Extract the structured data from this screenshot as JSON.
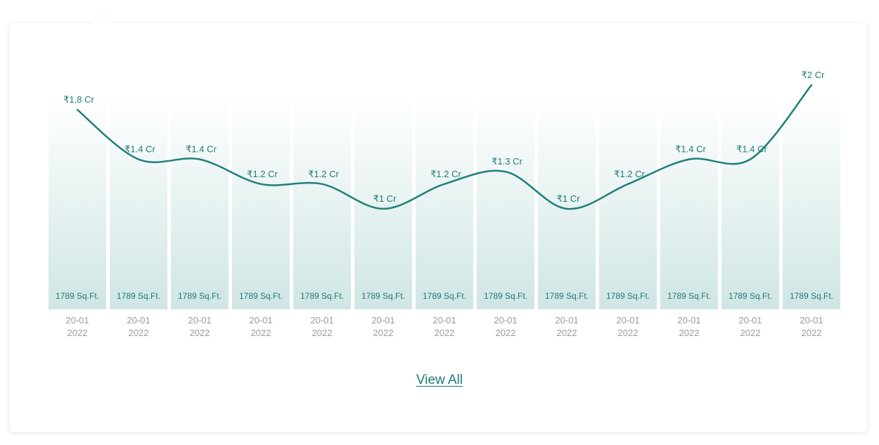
{
  "chart_data": {
    "type": "line",
    "categories": [
      "20-01 2022",
      "20-01 2022",
      "20-01 2022",
      "20-01 2022",
      "20-01 2022",
      "20-01 2022",
      "20-01 2022",
      "20-01 2022",
      "20-01 2022",
      "20-01 2022",
      "20-01 2022",
      "20-01 2022",
      "20-01 2022"
    ],
    "x_labels": [
      {
        "line1": "20-01",
        "line2": "2022"
      },
      {
        "line1": "20-01",
        "line2": "2022"
      },
      {
        "line1": "20-01",
        "line2": "2022"
      },
      {
        "line1": "20-01",
        "line2": "2022"
      },
      {
        "line1": "20-01",
        "line2": "2022"
      },
      {
        "line1": "20-01",
        "line2": "2022"
      },
      {
        "line1": "20-01",
        "line2": "2022"
      },
      {
        "line1": "20-01",
        "line2": "2022"
      },
      {
        "line1": "20-01",
        "line2": "2022"
      },
      {
        "line1": "20-01",
        "line2": "2022"
      },
      {
        "line1": "20-01",
        "line2": "2022"
      },
      {
        "line1": "20-01",
        "line2": "2022"
      },
      {
        "line1": "20-01",
        "line2": "2022"
      }
    ],
    "values": [
      1.8,
      1.4,
      1.4,
      1.2,
      1.2,
      1,
      1.2,
      1.3,
      1,
      1.2,
      1.4,
      1.4,
      2
    ],
    "value_labels": [
      "₹1.8 Cr",
      "₹1.4 Cr",
      "₹1.4 Cr",
      "₹1.2 Cr",
      "₹1.2 Cr",
      "₹1 Cr",
      "₹1.2 Cr",
      "₹1.3 Cr",
      "₹1 Cr",
      "₹1.2 Cr",
      "₹1.4 Cr",
      "₹1.4 Cr",
      "₹2 Cr"
    ],
    "bar_labels": [
      "1789 Sq.Ft.",
      "1789 Sq.Ft.",
      "1789 Sq.Ft.",
      "1789 Sq.Ft.",
      "1789 Sq.Ft.",
      "1789 Sq.Ft.",
      "1789 Sq.Ft.",
      "1789 Sq.Ft.",
      "1789 Sq.Ft.",
      "1789 Sq.Ft.",
      "1789 Sq.Ft.",
      "1789 Sq.Ft.",
      "1789 Sq.Ft."
    ],
    "unit": "Cr",
    "grid": false,
    "legend": "none"
  },
  "colors": {
    "line": "#1e7f7c",
    "label": "#1e7a78",
    "axis_label": "#9a9a9a",
    "bar_top": "#ffffff",
    "bar_bottom": "#cfe6e4"
  },
  "footer": {
    "view_all_label": "View All"
  }
}
